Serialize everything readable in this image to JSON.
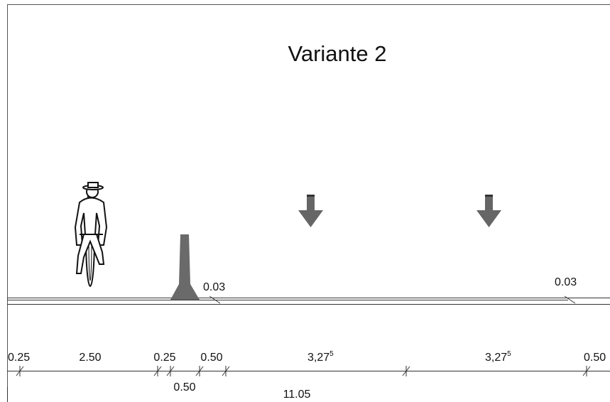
{
  "title": "Variante 2",
  "annotations": [
    "0.03",
    "0.03"
  ],
  "dimensions": [
    {
      "label": "0.25"
    },
    {
      "label": "2.50"
    },
    {
      "label": "0.25"
    },
    {
      "label": "0.50"
    },
    {
      "label": "3,27",
      "superscript": "5"
    },
    {
      "label": "3,27",
      "superscript": "5"
    },
    {
      "label": "0.50"
    }
  ],
  "sub_dimension": "0.50",
  "total": "11.05"
}
